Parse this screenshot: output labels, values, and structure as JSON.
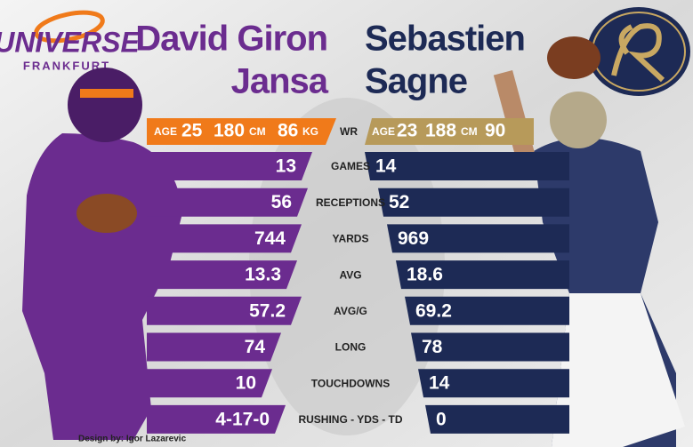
{
  "header": {
    "left_logo": {
      "name": "UNIVERSE",
      "city": "FRANKFURT"
    },
    "left_player": {
      "first": "David Giron",
      "last": "Jansa",
      "age_label": "AGE",
      "age": 25,
      "height": 180,
      "height_unit": "CM",
      "weight": 86,
      "weight_unit": "KG"
    },
    "position": "WR",
    "right_player": {
      "first": "Sebastien",
      "last": "Sagne",
      "age_label": "AGE",
      "age": 23,
      "height": 188,
      "height_unit": "CM",
      "weight": 90
    }
  },
  "stats": [
    {
      "label": "GAMES",
      "left": 13,
      "right": 14
    },
    {
      "label": "RECEPTIONS",
      "left": 56,
      "right": 52
    },
    {
      "label": "YARDS",
      "left": 744,
      "right": 969
    },
    {
      "label": "AVG",
      "left": 13.3,
      "right": 18.6
    },
    {
      "label": "AVG/G",
      "left": 57.2,
      "right": 69.2
    },
    {
      "label": "LONG",
      "left": 74,
      "right": 78
    },
    {
      "label": "TOUCHDOWNS",
      "left": 10,
      "right": 14
    },
    {
      "label": "RUSHING - YDS - TD",
      "left": "4-17-0",
      "right": 0
    }
  ],
  "footer": {
    "credit": "Design by: Igor Lazarevic"
  }
}
